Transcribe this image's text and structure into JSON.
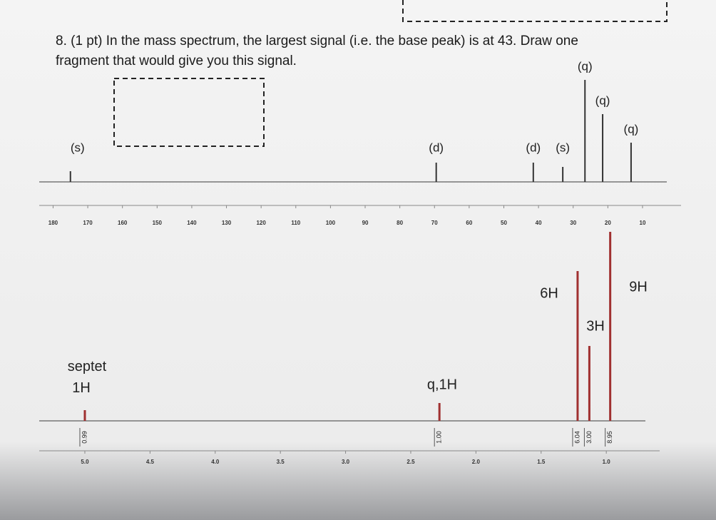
{
  "question": {
    "lines": [
      "8. (1 pt) In the mass spectrum, the largest signal (i.e. the base peak) is at 43.  Draw one",
      "fragment that would give you this signal."
    ]
  },
  "chart_data": [
    {
      "type": "stick",
      "x": [
        175,
        69.5,
        41.5,
        33,
        26.6,
        21.5,
        13.3
      ],
      "values": [
        15,
        27,
        27,
        21,
        143,
        95,
        55
      ],
      "labels": [
        "(s)",
        "(d)",
        "(d)",
        "(s)",
        "(q)",
        "(q)",
        "(q)"
      ],
      "color": "#333333",
      "xlim": [
        184,
        3
      ],
      "ylim": [
        0,
        150
      ],
      "xticks": [
        180,
        170,
        160,
        150,
        140,
        130,
        120,
        110,
        100,
        90,
        80,
        70,
        60,
        50,
        40,
        30,
        20,
        10
      ]
    },
    {
      "type": "stick",
      "x": [
        5.0,
        2.28,
        1.22,
        1.13,
        0.97
      ],
      "values": [
        15,
        25,
        210,
        105,
        265
      ],
      "labels": [
        "septet 1H",
        "q,1H",
        "6H",
        "3H",
        "9H"
      ],
      "integrals": [
        "0.99",
        "1.00",
        "6.04",
        "3.00",
        "8.95"
      ],
      "color": "#a03030",
      "xlim": [
        5.35,
        0.7
      ],
      "ylim": [
        0,
        270
      ],
      "xticks": [
        {
          "value": 5,
          "label": "5.0"
        },
        4.5,
        {
          "value": 4,
          "label": "4.0"
        },
        3.5,
        {
          "value": 3,
          "label": "3.0"
        },
        2.5,
        {
          "value": 2,
          "label": "2.0"
        },
        1.5,
        {
          "value": 1,
          "label": "1.0"
        }
      ]
    }
  ]
}
